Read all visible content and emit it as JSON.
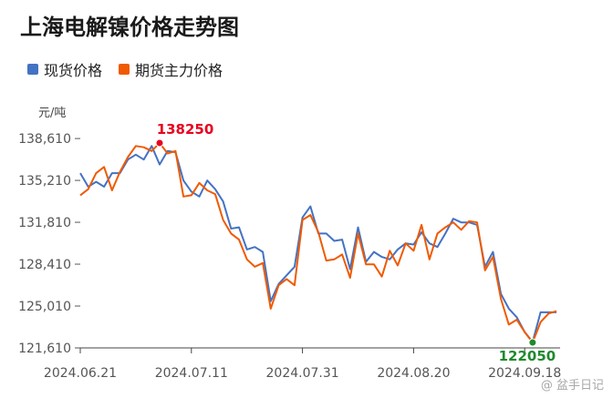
{
  "title": "上海电解镍价格走势图",
  "watermark": "@ 盆手日记",
  "chart_data": {
    "type": "line",
    "ylabel": "元/吨",
    "ylim": [
      121610,
      139800
    ],
    "yticks": [
      121610,
      125010,
      128410,
      131810,
      135210,
      138610
    ],
    "ytick_labels": [
      "121,610",
      "125,010",
      "128,410",
      "131,810",
      "135,210",
      "138,610"
    ],
    "xtick_labels": [
      "2024.06.21",
      "2024.07.11",
      "2024.07.31",
      "2024.08.20",
      "2024.09.18"
    ],
    "xtick_index": [
      0,
      14,
      28,
      42,
      56
    ],
    "grid": false,
    "legend_position": "top-left",
    "series": [
      {
        "name": "现货价格",
        "color": "#4472c4",
        "values": [
          135800,
          134700,
          135100,
          134700,
          135800,
          135800,
          136900,
          137300,
          136900,
          138000,
          136500,
          137600,
          137500,
          135200,
          134300,
          133900,
          135200,
          134500,
          133500,
          131300,
          131400,
          129600,
          129800,
          129400,
          125400,
          126800,
          127500,
          128200,
          132200,
          133100,
          130900,
          130900,
          130300,
          130400,
          128000,
          131400,
          128600,
          129400,
          129000,
          128800,
          129600,
          130100,
          130000,
          131000,
          130100,
          129800,
          130900,
          132100,
          131800,
          131800,
          131600,
          128200,
          129400,
          126000,
          124800,
          124100,
          122900,
          122100,
          124500,
          124500,
          124500
        ]
      },
      {
        "name": "期货主力价格",
        "color": "#f05a00",
        "values": [
          134000,
          134500,
          135800,
          136300,
          134400,
          135900,
          137100,
          138000,
          137900,
          137600,
          138250,
          137400,
          137600,
          133900,
          134000,
          135000,
          134400,
          134100,
          132000,
          130900,
          130400,
          128800,
          128200,
          128500,
          124800,
          126700,
          127200,
          126700,
          132000,
          132400,
          131000,
          128700,
          128800,
          129200,
          127300,
          130900,
          128400,
          128400,
          127400,
          129500,
          128300,
          130100,
          129500,
          131600,
          128800,
          130900,
          131400,
          131800,
          131200,
          131900,
          131800,
          127900,
          129000,
          125600,
          123500,
          123900,
          122900,
          122050,
          123700,
          124400,
          124600
        ]
      }
    ],
    "annotations": [
      {
        "label": "138250",
        "series": 1,
        "index": 10,
        "color": "#e8001e",
        "position": "above"
      },
      {
        "label": "122050",
        "series": 1,
        "index": 57,
        "color": "#1f8a2e",
        "position": "below"
      }
    ]
  }
}
